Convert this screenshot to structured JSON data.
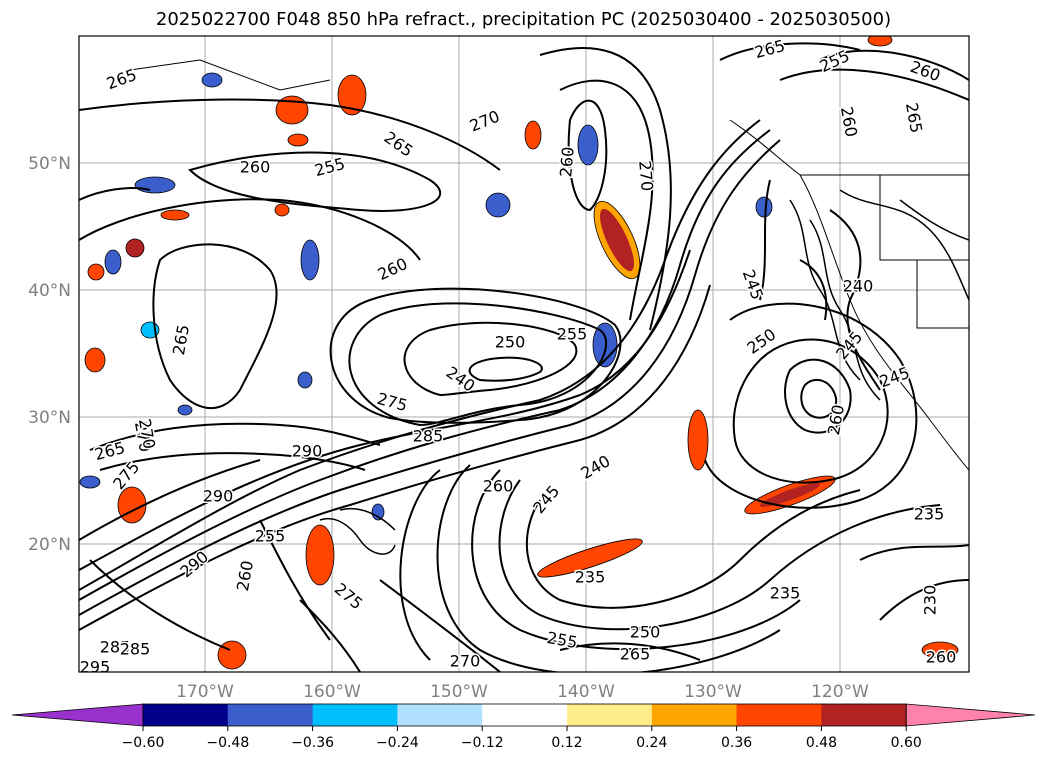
{
  "title": "2025022700 F048 850 hPa refract., precipitation PC (2025030400 - 2025030500)",
  "lat_labels": [
    "50°N",
    "40°N",
    "30°N",
    "20°N"
  ],
  "lon_labels": [
    "170°W",
    "160°W",
    "150°W",
    "140°W",
    "130°W",
    "120°W"
  ],
  "colorbar": {
    "ticks": [
      "−0.60",
      "−0.48",
      "−0.36",
      "−0.24",
      "−0.12",
      "0.12",
      "0.24",
      "0.36",
      "0.48",
      "0.60"
    ],
    "colors": [
      "#9932cc",
      "#00008b",
      "#3a5fcd",
      "#00bfff",
      "#b0e2ff",
      "#ffffff",
      "#ffec8b",
      "#ffa500",
      "#ff4500",
      "#b22222",
      "#ff82ab"
    ]
  },
  "contour_labels": [
    "265",
    "270",
    "265",
    "255",
    "260",
    "260",
    "265",
    "260",
    "270",
    "265",
    "255",
    "260",
    "260",
    "245",
    "250",
    "255",
    "240",
    "275",
    "285",
    "290",
    "265",
    "270",
    "275",
    "290",
    "290",
    "255",
    "260",
    "240",
    "245",
    "260",
    "235",
    "235",
    "250",
    "255",
    "265",
    "270",
    "285",
    "295",
    "285",
    "250",
    "260",
    "250",
    "240",
    "245",
    "235",
    "230",
    "260",
    "245",
    "275",
    "265",
    "270"
  ]
}
